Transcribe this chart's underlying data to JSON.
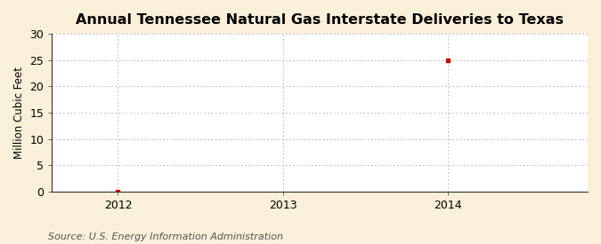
{
  "title": "Annual Tennessee Natural Gas Interstate Deliveries to Texas",
  "ylabel": "Million Cubic Feet",
  "source": "Source: U.S. Energy Information Administration",
  "x_data": [
    2012,
    2014
  ],
  "y_data": [
    0,
    25
  ],
  "xlim": [
    2011.6,
    2014.85
  ],
  "ylim": [
    0,
    30
  ],
  "yticks": [
    0,
    5,
    10,
    15,
    20,
    25,
    30
  ],
  "xticks": [
    2012,
    2013,
    2014
  ],
  "figure_bg_color": "#faefd8",
  "plot_bg_color": "#ffffff",
  "grid_color": "#aaaaaa",
  "point_color": "#cc0000",
  "spine_color": "#333333",
  "title_fontsize": 11.5,
  "label_fontsize": 8.5,
  "tick_fontsize": 9,
  "source_fontsize": 8,
  "title_fontweight": "bold"
}
